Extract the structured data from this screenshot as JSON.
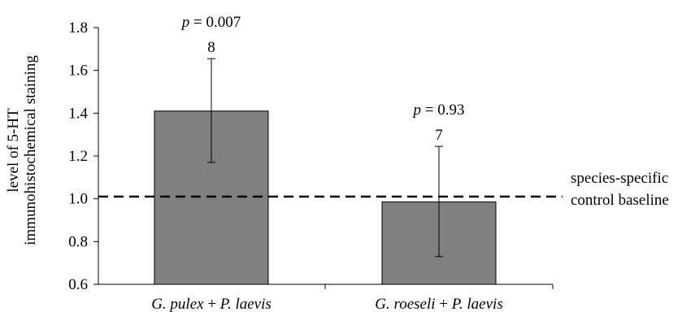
{
  "chart_data": {
    "type": "bar",
    "categories": [
      "G. pulex + P. laevis",
      "G. roeseli + P. laevis"
    ],
    "category_parts": [
      [
        "G. pulex",
        " + ",
        "P. laevis"
      ],
      [
        "G. roeseli",
        " + ",
        "P. laevis"
      ]
    ],
    "values": [
      1.41,
      0.985
    ],
    "error_high": [
      1.655,
      1.245
    ],
    "error_low": [
      1.17,
      0.73
    ],
    "sample_sizes": [
      "8",
      "7"
    ],
    "p_values": [
      "0.007",
      "0.93"
    ],
    "p_label": "p",
    "p_sep": " = ",
    "ylabel_line1": "level of 5-HT",
    "ylabel_line2": "immunohistochemical staining",
    "ylim": [
      0.6,
      1.8
    ],
    "yticks": [
      "0.6",
      "0.8",
      "1.0",
      "1.2",
      "1.4",
      "1.6",
      "1.8"
    ],
    "baseline": 1.01,
    "baseline_label_line1": "species-specific",
    "baseline_label_line2": "control baseline",
    "bar_color": "#808080",
    "grid": false
  }
}
